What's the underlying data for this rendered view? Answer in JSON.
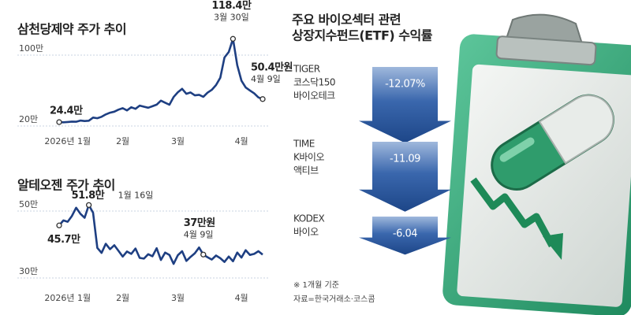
{
  "chart_data": [
    {
      "type": "line",
      "title": "삼천당제약 주가 추이",
      "color": "#1e3f82",
      "categories": [
        null,
        null,
        "2026년 1월",
        null,
        null,
        null,
        null,
        null,
        null,
        null,
        null,
        null,
        null,
        null,
        null,
        "2월",
        null,
        null,
        null,
        null,
        null,
        null,
        null,
        null,
        null,
        null,
        null,
        null,
        "3월",
        null,
        null,
        null,
        null,
        null,
        null,
        null,
        null,
        null,
        null,
        null,
        null,
        null,
        null,
        "4월",
        null,
        null,
        null,
        null,
        null
      ],
      "values": [
        24.4,
        24.2,
        24.5,
        25.0,
        24.8,
        26.1,
        25.6,
        26.0,
        29.5,
        28.8,
        30.4,
        33.1,
        35.0,
        36.2,
        38.5,
        40.1,
        37.6,
        41.2,
        39.4,
        43.0,
        41.8,
        40.6,
        42.3,
        44.1,
        48.6,
        46.3,
        44.0,
        52.7,
        58.1,
        62.0,
        56.4,
        57.9,
        54.6,
        55.2,
        53.0,
        57.6,
        60.8,
        66.2,
        74.5,
        97.3,
        103.5,
        118.4,
        88.6,
        71.2,
        63.5,
        60.1,
        56.8,
        52.3,
        50.4
      ],
      "ylim": [
        16,
        124
      ],
      "yticks": [
        {
          "value": 20,
          "label": "20만"
        },
        {
          "value": 100,
          "label": "100만"
        }
      ],
      "annotations": [
        {
          "value": 24.4,
          "label": "24.4만"
        },
        {
          "value": 118.4,
          "label": "118.4만",
          "date": "3월 30일"
        },
        {
          "value": 50.4,
          "label": "50.4만원",
          "date": "4월 9일"
        }
      ]
    },
    {
      "type": "line",
      "title": "알테오젠 주가 추이",
      "color": "#1e3f82",
      "categories": [
        null,
        null,
        "2026년 1월",
        null,
        null,
        null,
        null,
        null,
        null,
        null,
        null,
        null,
        null,
        null,
        null,
        "2월",
        null,
        null,
        null,
        null,
        null,
        null,
        null,
        null,
        null,
        null,
        null,
        null,
        "3월",
        null,
        null,
        null,
        null,
        null,
        null,
        null,
        null,
        null,
        null,
        null,
        null,
        null,
        null,
        "4월",
        null,
        null,
        null,
        null,
        null
      ],
      "values": [
        45.7,
        47.2,
        46.8,
        48.5,
        51.0,
        49.2,
        48.0,
        51.8,
        49.5,
        39.0,
        37.5,
        40.2,
        38.6,
        39.8,
        38.1,
        36.4,
        37.9,
        37.2,
        38.8,
        36.0,
        35.8,
        37.1,
        36.5,
        38.9,
        35.4,
        37.6,
        36.9,
        34.2,
        36.8,
        38.0,
        35.1,
        36.3,
        37.4,
        39.1,
        37.0,
        36.2,
        35.5,
        36.7,
        35.9,
        34.8,
        36.4,
        35.0,
        37.6,
        36.1,
        38.3,
        36.9,
        37.2,
        38.0,
        37.0
      ],
      "ylim": [
        27,
        54
      ],
      "yticks": [
        {
          "value": 30,
          "label": "30만"
        },
        {
          "value": 50,
          "label": "50만"
        }
      ],
      "annotations": [
        {
          "value": 45.7,
          "label": "45.7만"
        },
        {
          "value": 51.8,
          "label": "51.8만",
          "date": "1월 16일"
        },
        {
          "value": 37,
          "label": "37만원",
          "date": "4월 9일"
        }
      ]
    },
    {
      "type": "bar",
      "title": [
        "주요 바이오섹터 관련",
        "상장지수펀드(ETF) 수익률"
      ],
      "color": "#2c5aa0",
      "categories": [
        [
          "TIGER",
          "코스닥150",
          "바이오테크"
        ],
        [
          "TIME",
          "K바이오",
          "액티브"
        ],
        [
          "KODEX",
          "바이오"
        ]
      ],
      "values": [
        -12.07,
        -11.09,
        -6.04
      ],
      "value_labels": [
        "-12.07%",
        "-11.09",
        "-6.04"
      ],
      "notes": [
        "※ 1개월 기준",
        "자료=한국거래소·코스콤"
      ]
    }
  ]
}
